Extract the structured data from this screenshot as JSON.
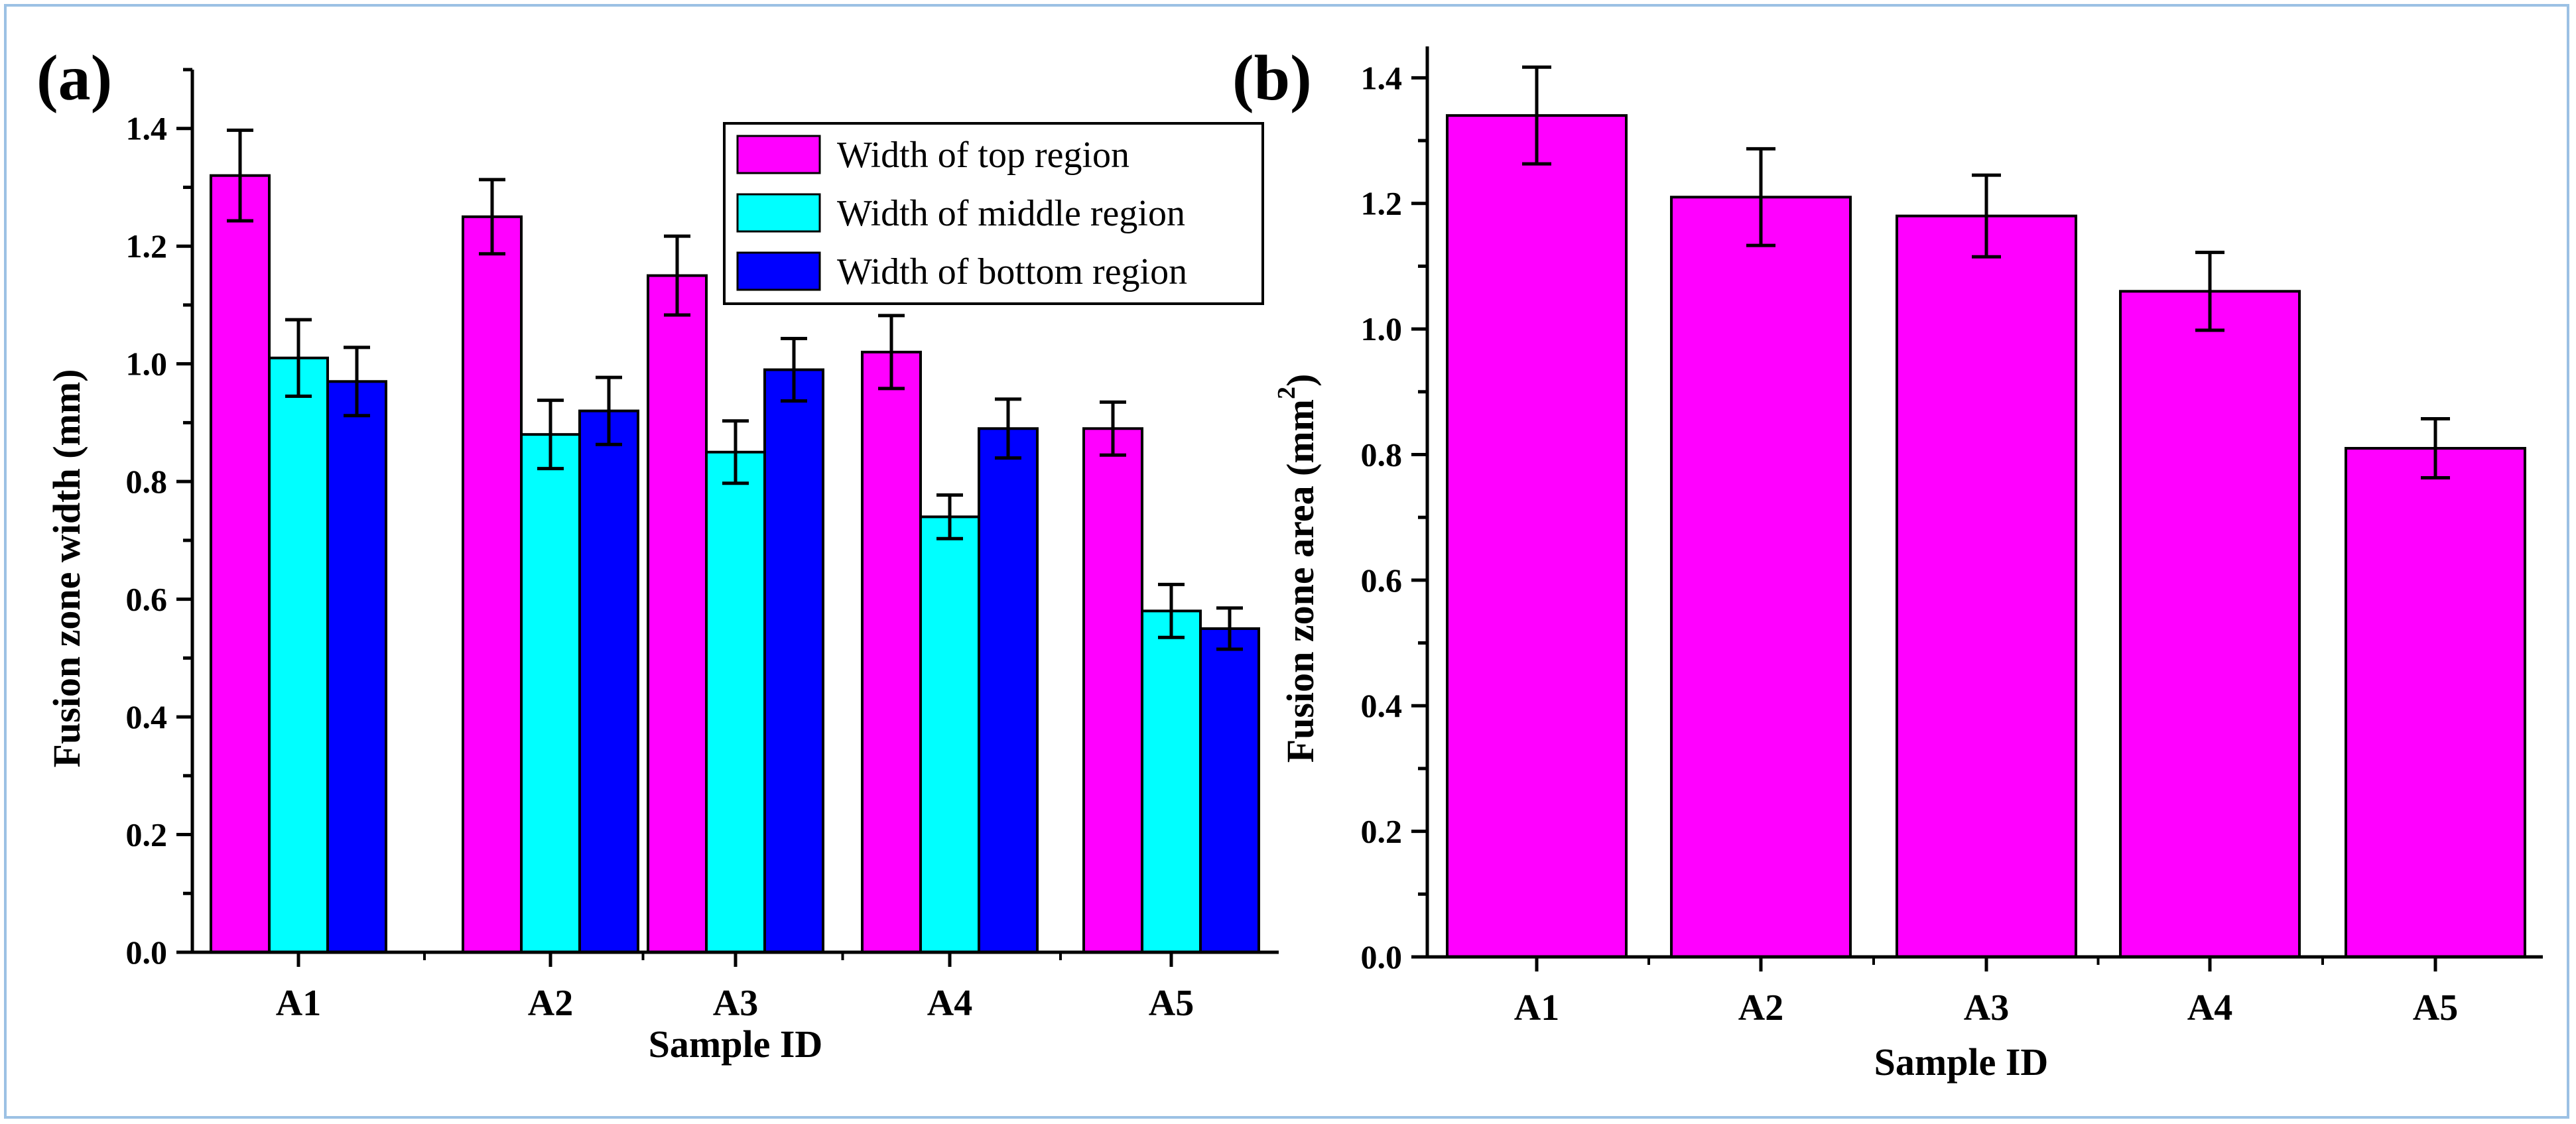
{
  "colors": {
    "top": "#ff00ff",
    "middle": "#00ffff",
    "bottom": "#0000ff",
    "frame": "#9cc1e4"
  },
  "chart_data": [
    {
      "type": "bar",
      "panel_label": "(a)",
      "categories": [
        "A1",
        "A2",
        "A3",
        "A4",
        "A5"
      ],
      "series": [
        {
          "name": "Width of top region",
          "values": [
            1.32,
            1.25,
            1.15,
            1.02,
            0.89
          ],
          "errors": [
            0.077,
            0.063,
            0.067,
            0.062,
            0.045
          ]
        },
        {
          "name": "Width of middle region",
          "values": [
            1.01,
            0.88,
            0.85,
            0.74,
            0.58
          ],
          "errors": [
            0.065,
            0.058,
            0.053,
            0.037,
            0.045
          ]
        },
        {
          "name": "Width of bottom region",
          "values": [
            0.97,
            0.92,
            0.99,
            0.89,
            0.55
          ],
          "errors": [
            0.058,
            0.057,
            0.053,
            0.05,
            0.035
          ]
        }
      ],
      "xlabel": "Sample ID",
      "ylabel": "Fusion zone width (mm)",
      "ylim": [
        0,
        1.5
      ],
      "yticks": [
        "0.0",
        "0.2",
        "0.4",
        "0.6",
        "0.8",
        "1.0",
        "1.2",
        "1.4"
      ],
      "legend_position": "top-right"
    },
    {
      "type": "bar",
      "panel_label": "(b)",
      "categories": [
        "A1",
        "A2",
        "A3",
        "A4",
        "A5"
      ],
      "series": [
        {
          "name": "Fusion zone area",
          "values": [
            1.34,
            1.21,
            1.18,
            1.06,
            0.81
          ],
          "errors": [
            0.077,
            0.077,
            0.065,
            0.062,
            0.047
          ]
        }
      ],
      "xlabel": "Sample ID",
      "ylabel": "Fusion zone area (mm",
      "ylabel_sup": "2",
      "ylabel_end": ")",
      "ylim": [
        0,
        1.45
      ],
      "yticks": [
        "0.0",
        "0.2",
        "0.4",
        "0.6",
        "0.8",
        "1.0",
        "1.2",
        "1.4"
      ]
    }
  ]
}
